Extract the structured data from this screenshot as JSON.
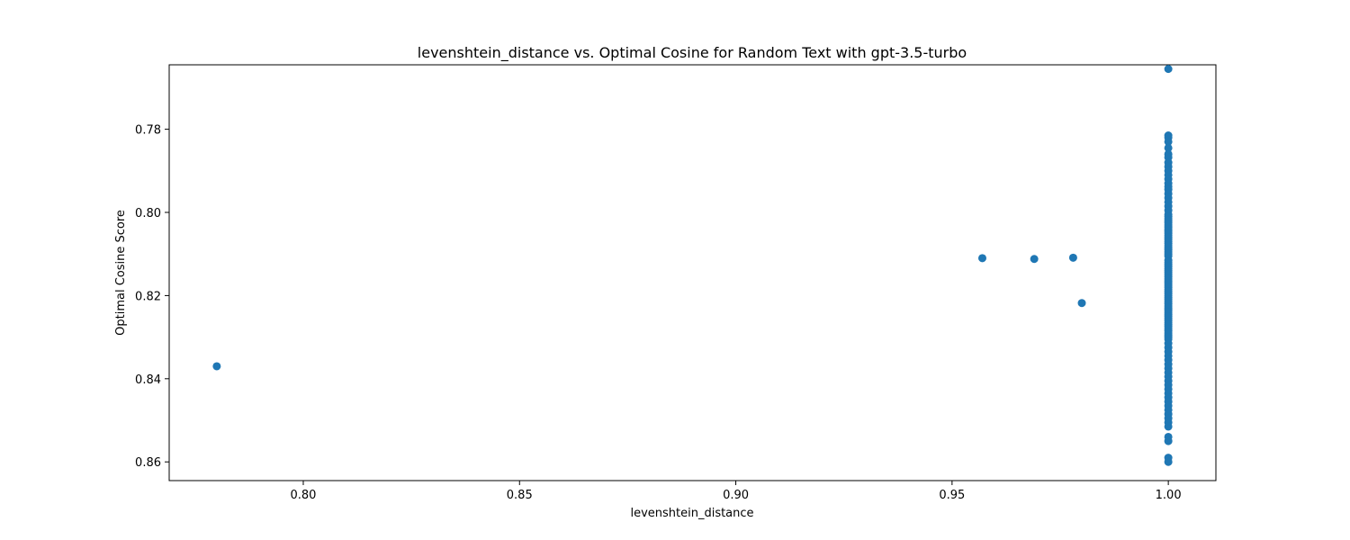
{
  "chart_data": {
    "type": "scatter",
    "title": "levenshtein_distance vs. Optimal Cosine for Random Text with gpt-3.5-turbo",
    "xlabel": "levenshtein_distance",
    "ylabel": "Optimal Cosine Score",
    "xlim": [
      0.769,
      1.011
    ],
    "ylim": [
      0.7645,
      0.8645
    ],
    "y_inverted": true,
    "grid": false,
    "legend": "none",
    "color": "#1f77b4",
    "x_ticks": [
      0.8,
      0.85,
      0.9,
      0.95,
      1.0
    ],
    "x_tick_labels": [
      "0.80",
      "0.85",
      "0.90",
      "0.95",
      "1.00"
    ],
    "y_ticks": [
      0.78,
      0.8,
      0.82,
      0.84,
      0.86
    ],
    "y_tick_labels": [
      "0.78",
      "0.80",
      "0.82",
      "0.84",
      "0.86"
    ],
    "series": [
      {
        "x": [
          0.78,
          0.957,
          0.969,
          0.978,
          0.98,
          1.0,
          1.0,
          1.0,
          1.0,
          1.0,
          1.0,
          1.0,
          1.0,
          1.0,
          1.0,
          1.0,
          1.0,
          1.0,
          1.0,
          1.0,
          1.0,
          1.0,
          1.0,
          1.0,
          1.0,
          1.0,
          1.0,
          1.0,
          1.0,
          1.0,
          1.0,
          1.0,
          1.0,
          1.0,
          1.0,
          1.0,
          1.0,
          1.0,
          1.0,
          1.0,
          1.0,
          1.0,
          1.0,
          1.0,
          1.0,
          1.0,
          1.0,
          1.0,
          1.0,
          1.0,
          1.0,
          1.0,
          1.0,
          1.0,
          1.0,
          1.0,
          1.0,
          1.0,
          1.0,
          1.0,
          1.0,
          1.0,
          1.0,
          1.0,
          1.0,
          1.0,
          1.0,
          1.0,
          1.0,
          1.0,
          1.0,
          1.0,
          1.0,
          1.0,
          1.0,
          1.0,
          1.0,
          1.0,
          1.0,
          1.0,
          1.0,
          1.0,
          1.0,
          1.0,
          1.0,
          1.0,
          1.0,
          1.0,
          1.0,
          1.0,
          1.0,
          1.0,
          1.0,
          1.0,
          1.0,
          1.0,
          1.0,
          1.0,
          1.0,
          1.0,
          1.0,
          1.0,
          1.0,
          1.0,
          1.0,
          1.0,
          1.0,
          1.0,
          1.0,
          1.0
        ],
        "y": [
          0.837,
          0.811,
          0.8112,
          0.8109,
          0.8218,
          0.7655,
          0.7815,
          0.782,
          0.783,
          0.7845,
          0.786,
          0.7868,
          0.788,
          0.789,
          0.79,
          0.791,
          0.792,
          0.793,
          0.7938,
          0.7945,
          0.7955,
          0.7965,
          0.7975,
          0.7985,
          0.7995,
          0.8005,
          0.8015,
          0.8025,
          0.8035,
          0.8045,
          0.8055,
          0.8065,
          0.8075,
          0.8085,
          0.8095,
          0.8105,
          0.8115,
          0.8125,
          0.8135,
          0.8145,
          0.8155,
          0.8165,
          0.8175,
          0.8185,
          0.8195,
          0.8205,
          0.8215,
          0.8225,
          0.8235,
          0.8245,
          0.8255,
          0.8265,
          0.8275,
          0.8285,
          0.8295,
          0.8305,
          0.8315,
          0.8325,
          0.8335,
          0.8345,
          0.8355,
          0.8365,
          0.8375,
          0.8385,
          0.8395,
          0.8405,
          0.8415,
          0.8425,
          0.8435,
          0.8445,
          0.8455,
          0.8465,
          0.8475,
          0.8485,
          0.8495,
          0.8505,
          0.8515,
          0.854,
          0.855,
          0.859,
          0.86,
          0.801,
          0.802,
          0.803,
          0.804,
          0.805,
          0.806,
          0.807,
          0.808,
          0.809,
          0.81,
          0.812,
          0.813,
          0.814,
          0.815,
          0.816,
          0.817,
          0.818,
          0.819,
          0.82,
          0.821,
          0.822,
          0.823,
          0.824,
          0.825,
          0.826,
          0.827,
          0.828,
          0.829,
          0.83
        ]
      }
    ]
  }
}
